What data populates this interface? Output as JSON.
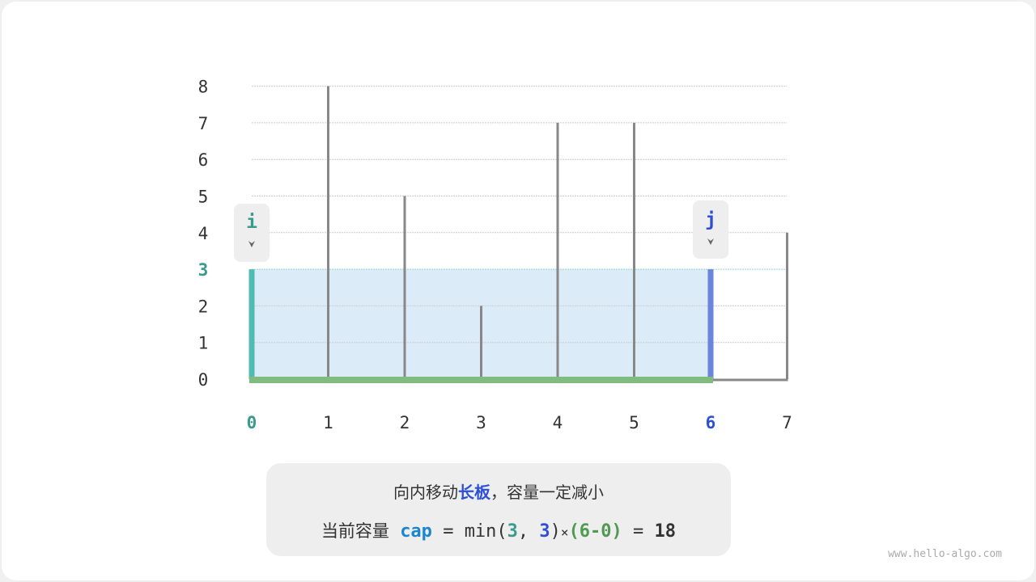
{
  "chart_data": {
    "type": "bar",
    "categories": [
      "0",
      "1",
      "2",
      "3",
      "4",
      "5",
      "6",
      "7"
    ],
    "values": [
      3,
      8,
      5,
      2,
      7,
      7,
      3,
      4
    ],
    "ylim": [
      0,
      8
    ],
    "yticks": [
      "0",
      "1",
      "2",
      "3",
      "4",
      "5",
      "6",
      "7",
      "8"
    ],
    "grid": true,
    "pointer_i": {
      "label": "i",
      "index": 0,
      "color": "#3a9a8c"
    },
    "pointer_j": {
      "label": "j",
      "index": 6,
      "color": "#2d4fd6"
    },
    "water_level": 3,
    "colors": {
      "bar": "#888888",
      "left": "#50bbb0",
      "right": "#6b85dc",
      "bottom": "#80bb80",
      "water": "#dbecf8"
    }
  },
  "caption": {
    "line1_prefix": "向内移动",
    "line1_highlight": "长板",
    "line1_suffix": "，容量一定减小",
    "line2_label": "当前容量",
    "var": "cap",
    "eq1": "=",
    "fn": "min(",
    "a": "3",
    "comma": ",",
    "b": "3",
    "close": ")",
    "times": "×",
    "width_expr": "(6-0)",
    "eq2": "=",
    "result": "18"
  },
  "watermark": "www.hello-algo.com"
}
